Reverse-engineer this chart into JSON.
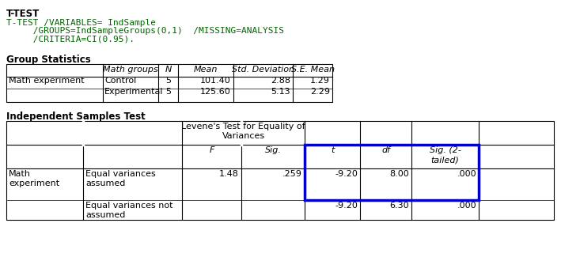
{
  "title": "T-TEST",
  "syntax_lines": [
    "T-TEST /VARIABLES= IndSample",
    "     /GROUPS=IndSampleGroups(0,1)  /MISSING=ANALYSIS",
    "     /CRITERIA=CI(0.95)."
  ],
  "group_stats_title": "Group Statistics",
  "group_stats_headers": [
    "",
    "Math groups",
    "N",
    "Mean",
    "Std. Deviation",
    "S.E. Mean"
  ],
  "group_stats_rows": [
    [
      "Math experiment",
      "Control",
      "5",
      "101.40",
      "2.88",
      "1.29"
    ],
    [
      "",
      "Experimental",
      "5",
      "125.60",
      "5.13",
      "2.29"
    ]
  ],
  "ind_test_title": "Independent Samples Test",
  "sub_labels": [
    "F",
    "Sig.",
    "t",
    "df",
    "Sig. (2-\ntailed)"
  ],
  "test_rows": [
    [
      "Math\nexperiment",
      "Equal variances\nassumed",
      "1.48",
      ".259",
      "-9.20",
      "8.00",
      ".000"
    ],
    [
      "",
      "Equal variances not\nassumed",
      "",
      "",
      "-9.20",
      "6.30",
      ".000"
    ]
  ],
  "highlight_color": "#0000CC",
  "bg_color": "#ffffff",
  "text_color": "#000000",
  "syntax_color": "#006400",
  "font_size": 8.5
}
